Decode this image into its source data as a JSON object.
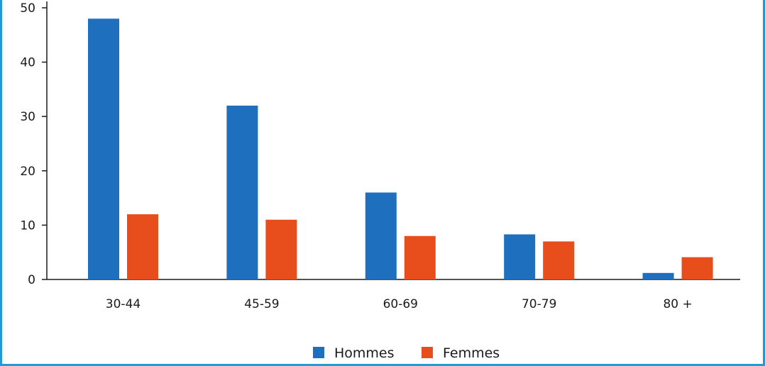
{
  "chart_data": {
    "type": "bar",
    "categories": [
      "30-44",
      "45-59",
      "60-69",
      "70-79",
      "80 +"
    ],
    "series": [
      {
        "name": "Hommes",
        "values": [
          48,
          32,
          16,
          8.3,
          1.2
        ]
      },
      {
        "name": "Femmes",
        "values": [
          12,
          11,
          8,
          7,
          4.1
        ]
      }
    ],
    "ylim": [
      0,
      50
    ],
    "yticks": [
      0,
      10,
      20,
      30,
      40,
      50
    ],
    "grid": false,
    "legend": "bottom-center",
    "colors": {
      "Hommes": "#1f6fbf",
      "Femmes": "#e84e1b"
    }
  }
}
